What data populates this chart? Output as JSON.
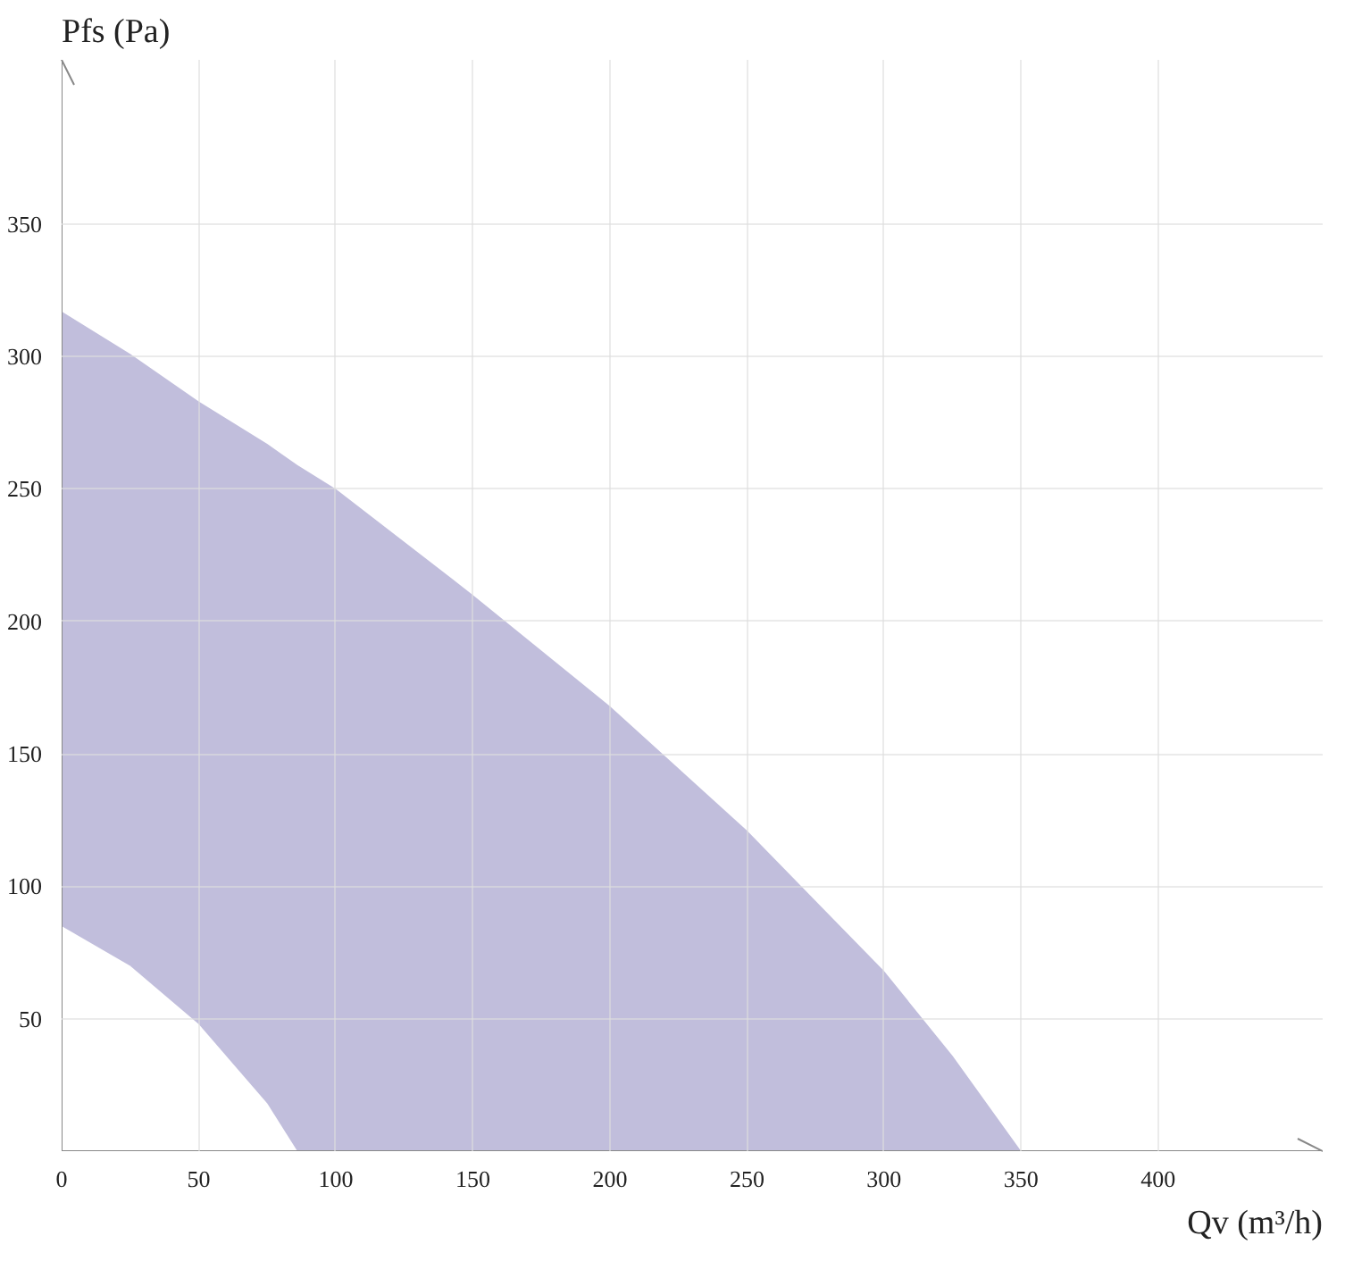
{
  "chart_data": {
    "type": "area",
    "xlabel": "Qv (m³/h)",
    "ylabel": "Pfs (Pa)",
    "x": [
      0,
      25,
      50,
      75,
      86,
      100,
      150,
      200,
      250,
      300,
      325,
      350
    ],
    "series": [
      {
        "color": "#c1bedc",
        "values": [
          317,
          301,
          283,
          267,
          259,
          250,
          210,
          168,
          121,
          68,
          36,
          0
        ]
      },
      {
        "color": "#ffffff",
        "x": [
          0,
          25,
          50,
          75,
          86
        ],
        "values": [
          85,
          70,
          48,
          18,
          0
        ]
      }
    ],
    "xlim": [
      0,
      460
    ],
    "ylim": [
      0,
      412
    ],
    "xticks": [
      0,
      50,
      100,
      150,
      200,
      250,
      300,
      350,
      400
    ],
    "yticks": [
      50,
      100,
      150,
      200,
      250,
      300,
      350
    ],
    "grid": true
  }
}
